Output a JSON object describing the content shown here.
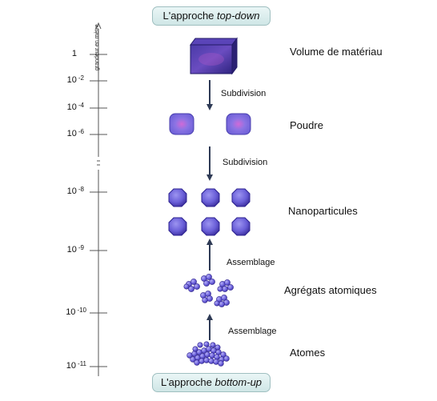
{
  "top_pill": {
    "prefix": "L'approche ",
    "emphasis": "top-down"
  },
  "bottom_pill": {
    "prefix": "L'approche ",
    "emphasis": "bottom-up"
  },
  "axis": {
    "title": "grandeur en mètre",
    "ticks": [
      {
        "base": "1",
        "exp": ""
      },
      {
        "base": "10",
        "exp": "-2"
      },
      {
        "base": "10",
        "exp": "-4"
      },
      {
        "base": "10",
        "exp": "-6"
      },
      {
        "base": "10",
        "exp": "-8"
      },
      {
        "base": "10",
        "exp": "-9"
      },
      {
        "base": "10",
        "exp": "-10"
      },
      {
        "base": "10",
        "exp": "-11"
      }
    ]
  },
  "stages": {
    "volume": "Volume  de matériau",
    "poudre": "Poudre",
    "nanoparticules": "Nanoparticules",
    "agregats": "Agrégats atomiques",
    "atomes": "Atomes"
  },
  "steps": {
    "subdivision_1": "Subdivision",
    "subdivision_2": "Subdivision",
    "assemblage_1": "Assemblage",
    "assemblage_2": "Assemblage"
  },
  "colors": {
    "particle_fill": "#6a5fd8",
    "particle_dark": "#3c2f9e",
    "arrow": "#2e3a55",
    "axis": "#555555"
  }
}
